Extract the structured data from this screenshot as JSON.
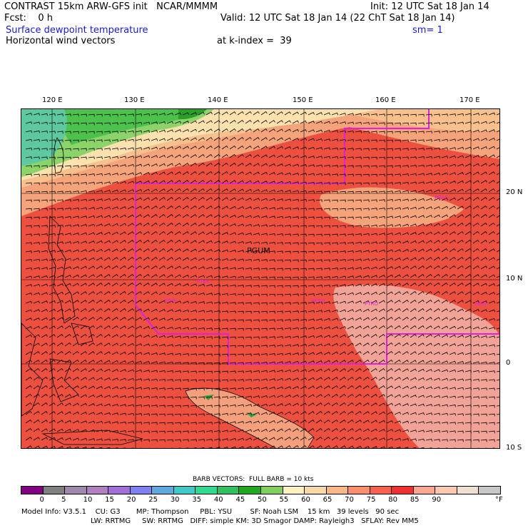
{
  "header": {
    "model_line": "CONTRAST 15km ARW-GFS init   NCAR/MMMM",
    "init": "Init: 12 UTC Sat 18 Jan 14",
    "fcst": "Fcst:    0 h",
    "valid": "Valid: 12 UTC Sat 18 Jan 14 (22 ChT Sat 18 Jan 14)",
    "field1": "Surface dewpoint temperature",
    "smoothing": "sm= 1",
    "field2": "Horizontal wind vectors",
    "k_index": "at k-index =  39"
  },
  "map": {
    "lon_labels": [
      "120 E",
      "130 E",
      "140 E",
      "150 E",
      "160 E",
      "170 E"
    ],
    "lat_labels": [
      "20 N",
      "10 N",
      "0",
      "10 S"
    ],
    "center_label": "PGUM",
    "station_labels": [
      "PGUM",
      "PTKK",
      "PTPN",
      "PKWA",
      "PTRO",
      "PKMJ",
      "PGAC"
    ],
    "colors": {
      "land_dry": "#7ad3b5",
      "green_dark": "#2a9e2a",
      "green_mid": "#4cc24c",
      "green_light": "#8cd46a",
      "tan_light": "#fbe1ae",
      "tan": "#f7c08c",
      "orange": "#f5a37a",
      "red_orange": "#f06a55",
      "red": "#ec4a3f",
      "pink_light": "#f2a398",
      "boundary": "#e020e0"
    }
  },
  "colorbar": {
    "title": "BARB VECTORS:  FULL BARB = 10 kts",
    "unit": "°F",
    "ticks": [
      "0",
      "5",
      "10",
      "15",
      "20",
      "25",
      "30",
      "35",
      "40",
      "45",
      "50",
      "55",
      "60",
      "65",
      "70",
      "75",
      "80",
      "85",
      "90"
    ],
    "colors": [
      "#800080",
      "#808080",
      "#9f8aad",
      "#b080c0",
      "#a070d8",
      "#8080f0",
      "#60a8e0",
      "#40c8c8",
      "#30d890",
      "#30c060",
      "#20a820",
      "#80d060",
      "#fff0c0",
      "#f8d8a8",
      "#f8b888",
      "#f89070",
      "#f86050",
      "#f03030",
      "#f8a890",
      "#fcc8b0",
      "#f0e0d0",
      "#c8c8c8"
    ]
  },
  "model_info": {
    "line1": "Model Info: V3.5.1    CU: G3       MP: Thompson     PBL: YSU        SF: Noah LSM    15 km   39 levels   90 sec",
    "line2": "LW: RRTMG     SW: RRTMG   DIFF: simple KM: 3D Smagor DAMP: Rayleigh3   SFLAY: Rev MM5"
  }
}
